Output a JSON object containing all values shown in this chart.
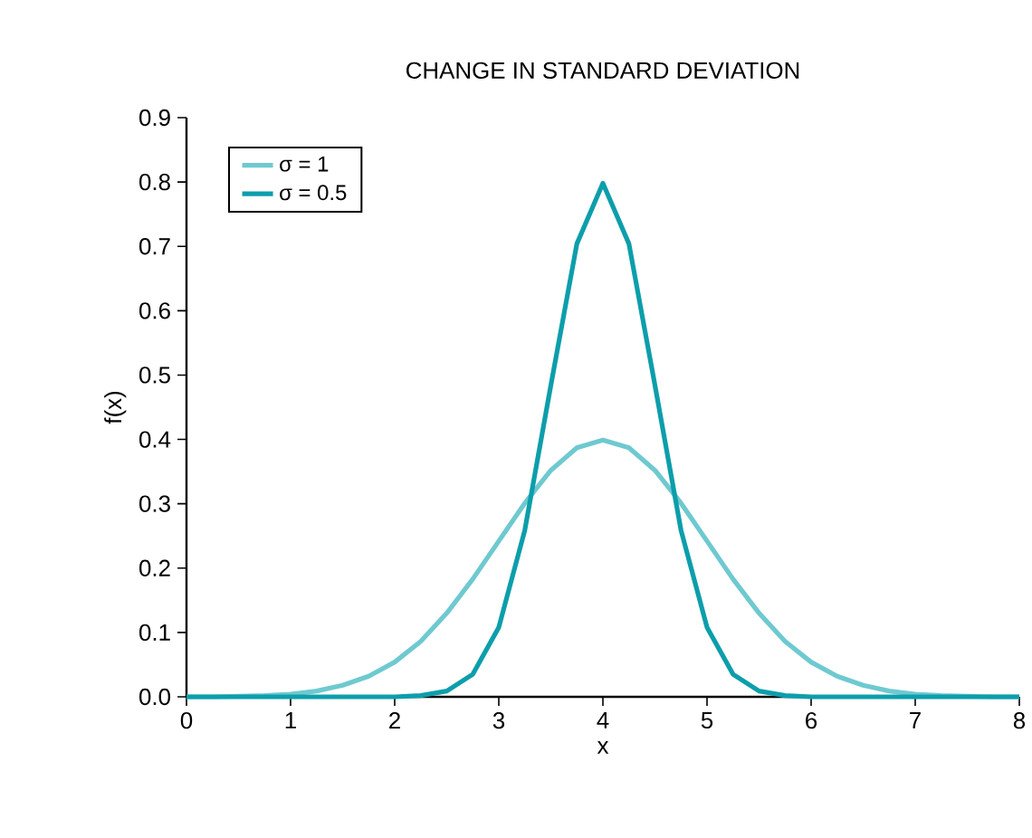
{
  "chart_data": {
    "type": "line",
    "title": "CHANGE IN STANDARD DEVIATION",
    "xlabel": "x",
    "ylabel": "f(x)",
    "x": [
      0,
      0.25,
      0.5,
      0.75,
      1,
      1.25,
      1.5,
      1.75,
      2,
      2.25,
      2.5,
      2.75,
      3,
      3.25,
      3.5,
      3.75,
      4,
      4.25,
      4.5,
      4.75,
      5,
      5.25,
      5.5,
      5.75,
      6,
      6.25,
      6.5,
      6.75,
      7,
      7.25,
      7.5,
      7.75,
      8
    ],
    "series": [
      {
        "name": "σ = 1",
        "color": "#6ec9d0",
        "values": [
          0,
          0,
          0.001,
          0.002,
          0.004,
          0.009,
          0.018,
          0.032,
          0.054,
          0.086,
          0.13,
          0.183,
          0.242,
          0.301,
          0.352,
          0.387,
          0.399,
          0.387,
          0.352,
          0.301,
          0.242,
          0.183,
          0.13,
          0.086,
          0.054,
          0.032,
          0.018,
          0.009,
          0.004,
          0.002,
          0.001,
          0,
          0
        ]
      },
      {
        "name": "σ = 0.5",
        "color": "#0c9eab",
        "values": [
          0,
          0,
          0,
          0,
          0,
          0,
          0,
          0,
          0,
          0.002,
          0.009,
          0.035,
          0.108,
          0.259,
          0.484,
          0.704,
          0.798,
          0.704,
          0.484,
          0.259,
          0.108,
          0.035,
          0.009,
          0.002,
          0,
          0,
          0,
          0,
          0,
          0,
          0,
          0,
          0
        ]
      }
    ],
    "xlim": [
      0,
      8
    ],
    "xticks": [
      0,
      1,
      2,
      3,
      4,
      5,
      6,
      7,
      8
    ],
    "ylim": [
      0,
      0.9
    ],
    "yticks": [
      {
        "value": 0,
        "label": "0.0"
      },
      {
        "value": 0.1,
        "label": "0.1"
      },
      {
        "value": 0.2,
        "label": "0.2"
      },
      {
        "value": 0.3,
        "label": "0.3"
      },
      {
        "value": 0.4,
        "label": "0.4"
      },
      {
        "value": 0.5,
        "label": "0.5"
      },
      {
        "value": 0.6,
        "label": "0.6"
      },
      {
        "value": 0.7,
        "label": "0.7"
      },
      {
        "value": 0.8,
        "label": "0.8"
      },
      {
        "value": 0.9,
        "label": "0.9"
      }
    ],
    "grid": false,
    "legend": "top left",
    "marker": "none",
    "line_style": "solid"
  }
}
